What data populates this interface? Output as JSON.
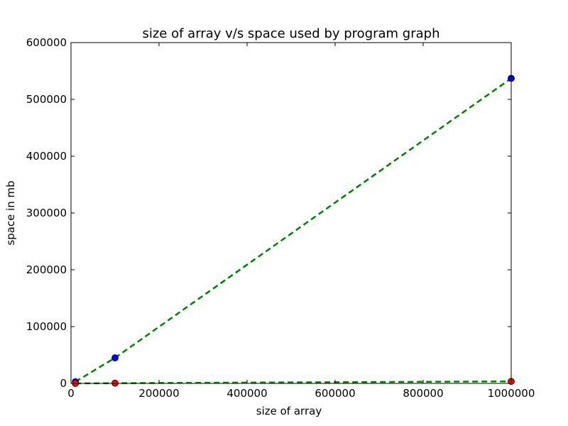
{
  "chart_data": {
    "type": "line",
    "title": "size of array v/s space used by program graph",
    "xlabel": "size of array",
    "ylabel": "space in mb",
    "xlim": [
      0,
      1000000
    ],
    "ylim": [
      0,
      600000
    ],
    "xticks": [
      "0",
      "200000",
      "400000",
      "600000",
      "800000",
      "1000000"
    ],
    "yticks": [
      "0",
      "100000",
      "200000",
      "300000",
      "400000",
      "500000",
      "600000"
    ],
    "grid": false,
    "legend": "none",
    "series": [
      {
        "x": [
          10000,
          100000,
          1000000
        ],
        "y": [
          3000,
          45000,
          537000
        ],
        "marker_color": "#0000ff",
        "line_color": "#008000",
        "line_style": "dashed"
      },
      {
        "x": [
          10000,
          100000,
          1000000
        ],
        "y": [
          50,
          400,
          3500
        ],
        "marker_color": "#ff0000",
        "line_color": "#008000",
        "line_style": "dashed"
      }
    ]
  }
}
